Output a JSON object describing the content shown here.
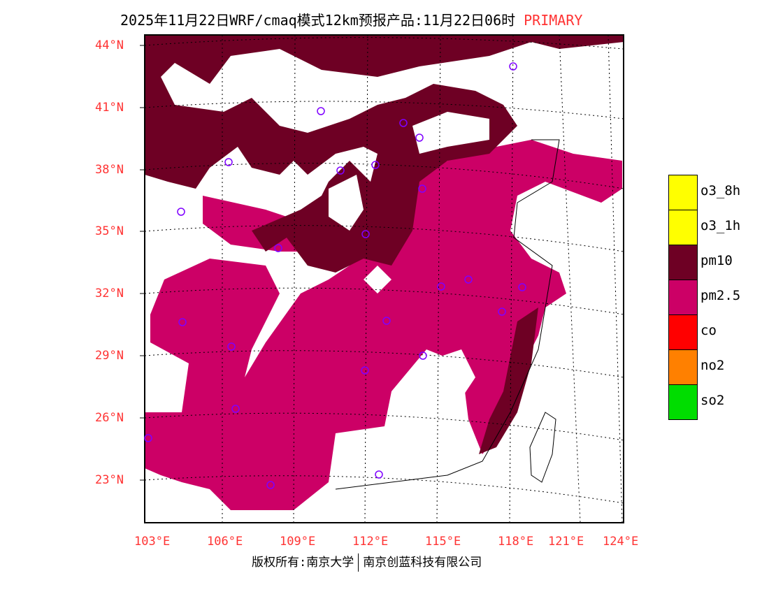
{
  "title": {
    "main": "2025年11月22日WRF/cmaq模式12km预报产品:11月22日06时",
    "tag": "PRIMARY"
  },
  "lat_ticks": [
    "44°N",
    "41°N",
    "38°N",
    "35°N",
    "32°N",
    "29°N",
    "26°N",
    "23°N"
  ],
  "lon_ticks": [
    "103°E",
    "106°E",
    "109°E",
    "112°E",
    "115°E",
    "118°E",
    "121°E",
    "124°E"
  ],
  "legend": [
    {
      "label": "o3_8h",
      "color": "#ffff00"
    },
    {
      "label": "o3_1h",
      "color": "#ffff00"
    },
    {
      "label": "pm10",
      "color": "#6e0024"
    },
    {
      "label": "pm2.5",
      "color": "#cc0066"
    },
    {
      "label": "co",
      "color": "#ff0000"
    },
    {
      "label": "no2",
      "color": "#ff8000"
    },
    {
      "label": "so2",
      "color": "#00dd00"
    }
  ],
  "footer": {
    "left": "版权所有:南京大学",
    "right": "南京创蓝科技有限公司"
  },
  "colors": {
    "city_marker": "#7f00ff",
    "pm10": "#6e0024",
    "pm25": "#cc0066"
  }
}
